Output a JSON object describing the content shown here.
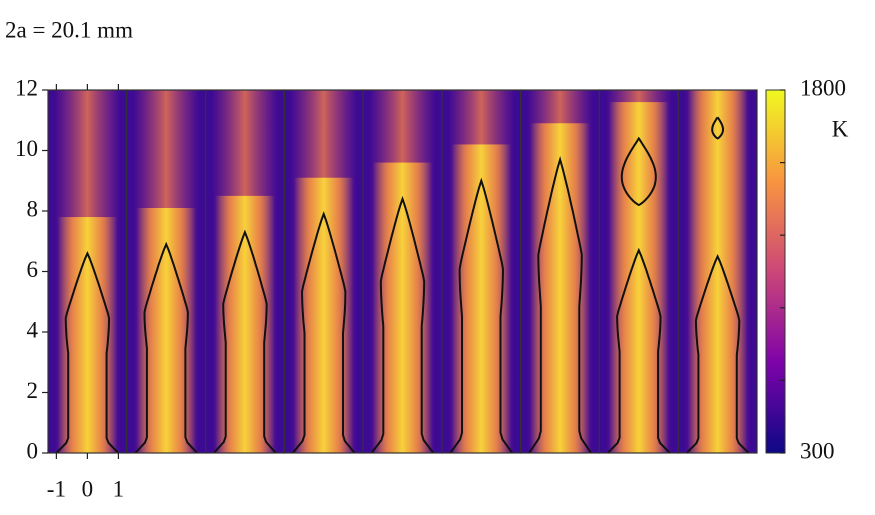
{
  "chart_data": {
    "type": "flame-panels",
    "title": "2a = 20.1 mm",
    "xlim": [
      -1.27,
      1.27
    ],
    "xticks": [
      -1,
      0,
      1
    ],
    "ylim": [
      0,
      12
    ],
    "yticks": [
      0,
      2,
      4,
      6,
      8,
      10,
      12
    ],
    "panels": [
      {
        "flame_tip": 6.6
      },
      {
        "flame_tip": 6.9
      },
      {
        "flame_tip": 7.3
      },
      {
        "flame_tip": 7.9
      },
      {
        "flame_tip": 8.4
      },
      {
        "flame_tip": 9.0
      },
      {
        "flame_tip": 9.7
      },
      {
        "flame_tip": 6.7,
        "pocket": [
          8.2,
          10.4
        ]
      },
      {
        "flame_tip": 6.5,
        "pocket": [
          10.4,
          11.1
        ]
      }
    ],
    "colormap": "plasma",
    "clim": [
      300,
      1800
    ],
    "cticks": [
      300,
      {
        "value": 600,
        "label": null
      },
      {
        "value": 900,
        "label": null
      },
      {
        "value": 1200,
        "label": null
      },
      {
        "value": 1500,
        "label": null
      },
      1800
    ],
    "colorbar_label": "K"
  }
}
